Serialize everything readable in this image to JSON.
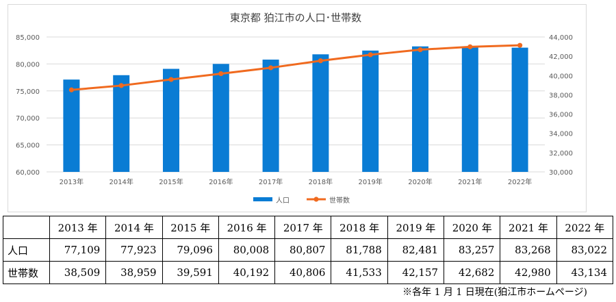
{
  "chart_data": {
    "type": "bar+line",
    "title": "東京都 狛江市の人口･世帯数",
    "categories": [
      "2013年",
      "2014年",
      "2015年",
      "2016年",
      "2017年",
      "2018年",
      "2019年",
      "2020年",
      "2021年",
      "2022年"
    ],
    "series": [
      {
        "name": "人口",
        "type": "bar",
        "axis": "left",
        "color": "#0a7cd4",
        "values": [
          77109,
          77923,
          79096,
          80008,
          80807,
          81788,
          82481,
          83257,
          83268,
          83022
        ]
      },
      {
        "name": "世帯数",
        "type": "line",
        "axis": "right",
        "color": "#f06a1f",
        "marker": "circle",
        "values": [
          38509,
          38959,
          39591,
          40192,
          40806,
          41533,
          42157,
          42682,
          42980,
          43134
        ]
      }
    ],
    "y_left": {
      "min": 60000,
      "max": 85000,
      "step": 5000,
      "tick_labels": [
        "60,000",
        "65,000",
        "70,000",
        "75,000",
        "80,000",
        "85,000"
      ]
    },
    "y_right": {
      "min": 30000,
      "max": 44000,
      "step": 2000,
      "tick_labels": [
        "30,000",
        "32,000",
        "34,000",
        "36,000",
        "38,000",
        "40,000",
        "42,000",
        "44,000"
      ]
    },
    "grid": true,
    "legend_position": "bottom"
  },
  "table": {
    "headers": [
      "",
      "2013 年",
      "2014 年",
      "2015 年",
      "2016 年",
      "2017 年",
      "2018 年",
      "2019 年",
      "2020 年",
      "2021 年",
      "2022 年"
    ],
    "rows": [
      {
        "label": "人口",
        "cells": [
          "77,109",
          "77,923",
          "79,096",
          "80,008",
          "80,807",
          "81,788",
          "82,481",
          "83,257",
          "83,268",
          "83,022"
        ]
      },
      {
        "label": "世帯数",
        "cells": [
          "38,509",
          "38,959",
          "39,591",
          "40,192",
          "40,806",
          "41,533",
          "42,157",
          "42,682",
          "42,980",
          "43,134"
        ]
      }
    ]
  },
  "footnote": "※各年 1 月 1 日現在(狛江市ホームページ)"
}
